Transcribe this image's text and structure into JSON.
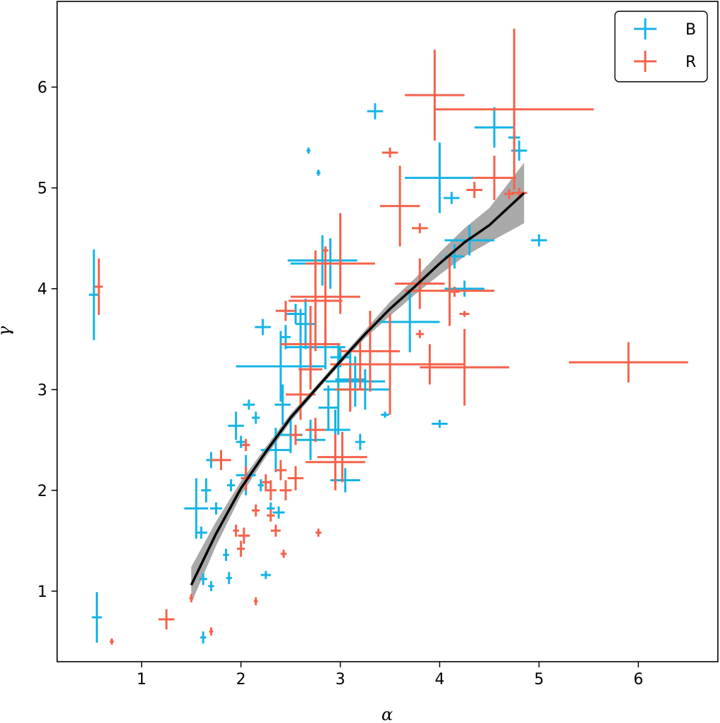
{
  "chart_data": {
    "type": "scatter",
    "title": "",
    "xlabel": "α",
    "ylabel": "γ",
    "xlim": [
      0.15,
      6.8
    ],
    "ylim": [
      0.3,
      6.85
    ],
    "xticks": [
      1,
      2,
      3,
      4,
      5,
      6
    ],
    "yticks": [
      1,
      2,
      3,
      4,
      5,
      6
    ],
    "grid": false,
    "legend": {
      "position": "top-right",
      "entries": [
        "B",
        "R"
      ]
    },
    "colors": {
      "B": "#14b4e6",
      "R": "#f5624a",
      "fit": "#000000",
      "band": "#8c8c8c"
    },
    "series": [
      {
        "name": "B",
        "points": [
          [
            0.52,
            3.94,
            0.05,
            0.45
          ],
          [
            0.55,
            0.74,
            0.05,
            0.25
          ],
          [
            1.55,
            1.82,
            0.12,
            0.3
          ],
          [
            1.65,
            2.0,
            0.05,
            0.12
          ],
          [
            1.6,
            1.58,
            0.06,
            0.06
          ],
          [
            1.7,
            2.3,
            0.05,
            0.08
          ],
          [
            1.75,
            1.82,
            0.06,
            0.06
          ],
          [
            1.62,
            1.12,
            0.04,
            0.06
          ],
          [
            1.7,
            1.05,
            0.03,
            0.05
          ],
          [
            1.62,
            0.54,
            0.03,
            0.06
          ],
          [
            1.85,
            1.36,
            0.03,
            0.06
          ],
          [
            1.88,
            1.13,
            0.03,
            0.06
          ],
          [
            1.9,
            2.05,
            0.04,
            0.06
          ],
          [
            1.95,
            2.64,
            0.08,
            0.14
          ],
          [
            2.0,
            2.48,
            0.05,
            0.06
          ],
          [
            2.05,
            2.15,
            0.1,
            0.2
          ],
          [
            2.08,
            2.85,
            0.06,
            0.05
          ],
          [
            2.15,
            2.72,
            0.04,
            0.06
          ],
          [
            2.2,
            2.05,
            0.03,
            0.06
          ],
          [
            2.25,
            1.16,
            0.05,
            0.04
          ],
          [
            2.22,
            3.62,
            0.08,
            0.08
          ],
          [
            2.4,
            3.23,
            0.45,
            0.35
          ],
          [
            2.35,
            2.4,
            0.15,
            0.22
          ],
          [
            2.3,
            1.82,
            0.04,
            0.06
          ],
          [
            2.38,
            1.78,
            0.06,
            0.06
          ],
          [
            2.42,
            2.85,
            0.08,
            0.2
          ],
          [
            2.45,
            3.52,
            0.05,
            0.12
          ],
          [
            2.5,
            2.55,
            0.12,
            0.18
          ],
          [
            2.55,
            3.75,
            0.1,
            0.1
          ],
          [
            2.6,
            3.42,
            0.15,
            0.38
          ],
          [
            2.65,
            3.65,
            0.1,
            0.25
          ],
          [
            2.7,
            2.5,
            0.15,
            0.2
          ],
          [
            2.68,
            5.37,
            0.02,
            0.03
          ],
          [
            2.78,
            5.15,
            0.02,
            0.03
          ],
          [
            2.82,
            4.28,
            0.35,
            0.25
          ],
          [
            2.9,
            4.25,
            0.4,
            0.25
          ],
          [
            2.85,
            3.42,
            0.2,
            0.22
          ],
          [
            2.88,
            2.82,
            0.1,
            0.22
          ],
          [
            2.95,
            2.6,
            0.15,
            0.2
          ],
          [
            2.98,
            3.0,
            0.15,
            0.45
          ],
          [
            3.0,
            3.32,
            0.1,
            0.1
          ],
          [
            3.05,
            2.1,
            0.15,
            0.12
          ],
          [
            3.1,
            3.1,
            0.15,
            0.3
          ],
          [
            3.15,
            3.08,
            0.3,
            0.25
          ],
          [
            3.2,
            2.48,
            0.05,
            0.08
          ],
          [
            3.25,
            3.0,
            0.25,
            0.2
          ],
          [
            3.35,
            5.76,
            0.08,
            0.08
          ],
          [
            3.45,
            2.75,
            0.04,
            0.03
          ],
          [
            3.7,
            3.67,
            0.3,
            0.3
          ],
          [
            4.0,
            5.1,
            0.35,
            0.35
          ],
          [
            4.12,
            4.9,
            0.08,
            0.06
          ],
          [
            4.15,
            4.32,
            0.1,
            0.12
          ],
          [
            4.0,
            2.66,
            0.08,
            0.04
          ],
          [
            4.3,
            4.48,
            0.25,
            0.15
          ],
          [
            4.25,
            4.0,
            0.2,
            0.08
          ],
          [
            4.55,
            5.6,
            0.2,
            0.2
          ],
          [
            4.75,
            5.5,
            0.06,
            0.06
          ],
          [
            4.8,
            5.37,
            0.08,
            0.1
          ],
          [
            5.0,
            4.48,
            0.08,
            0.06
          ]
        ]
      },
      {
        "name": "R",
        "points": [
          [
            0.57,
            4.02,
            0.04,
            0.28
          ],
          [
            0.7,
            0.5,
            0.02,
            0.03
          ],
          [
            1.25,
            0.72,
            0.08,
            0.1
          ],
          [
            1.5,
            0.93,
            0.02,
            0.04
          ],
          [
            1.7,
            0.6,
            0.02,
            0.04
          ],
          [
            1.8,
            2.3,
            0.1,
            0.1
          ],
          [
            1.95,
            1.6,
            0.03,
            0.06
          ],
          [
            2.0,
            1.42,
            0.04,
            0.08
          ],
          [
            2.03,
            1.55,
            0.06,
            0.08
          ],
          [
            2.05,
            2.12,
            0.05,
            0.12
          ],
          [
            2.05,
            2.45,
            0.04,
            0.06
          ],
          [
            2.15,
            0.9,
            0.02,
            0.04
          ],
          [
            2.15,
            1.8,
            0.04,
            0.06
          ],
          [
            2.25,
            2.08,
            0.04,
            0.08
          ],
          [
            2.3,
            2.0,
            0.06,
            0.1
          ],
          [
            2.3,
            1.75,
            0.04,
            0.06
          ],
          [
            2.35,
            1.6,
            0.05,
            0.06
          ],
          [
            2.4,
            2.2,
            0.06,
            0.1
          ],
          [
            2.43,
            1.37,
            0.03,
            0.04
          ],
          [
            2.45,
            3.78,
            0.1,
            0.1
          ],
          [
            2.45,
            2.0,
            0.06,
            0.1
          ],
          [
            2.55,
            2.12,
            0.08,
            0.12
          ],
          [
            2.55,
            2.55,
            0.06,
            0.1
          ],
          [
            2.6,
            2.95,
            0.15,
            0.25
          ],
          [
            2.7,
            3.45,
            0.3,
            0.38
          ],
          [
            2.7,
            3.2,
            0.12,
            0.2
          ],
          [
            2.75,
            2.6,
            0.1,
            0.12
          ],
          [
            2.78,
            1.58,
            0.03,
            0.04
          ],
          [
            2.75,
            3.88,
            0.27,
            0.5
          ],
          [
            2.85,
            4.38,
            0.03,
            0.03
          ],
          [
            2.85,
            3.92,
            0.35,
            0.5
          ],
          [
            2.95,
            2.28,
            0.3,
            0.28
          ],
          [
            3.0,
            4.25,
            0.35,
            0.5
          ],
          [
            3.02,
            2.33,
            0.25,
            0.25
          ],
          [
            3.1,
            3.0,
            0.15,
            0.22
          ],
          [
            3.2,
            3.25,
            0.3,
            0.25
          ],
          [
            3.3,
            3.38,
            0.3,
            0.4
          ],
          [
            3.5,
            3.25,
            0.35,
            0.5
          ],
          [
            3.5,
            5.35,
            0.08,
            0.05
          ],
          [
            3.6,
            4.82,
            0.2,
            0.4
          ],
          [
            3.8,
            4.6,
            0.08,
            0.05
          ],
          [
            3.8,
            3.55,
            0.04,
            0.04
          ],
          [
            3.8,
            4.05,
            0.25,
            0.25
          ],
          [
            3.9,
            3.25,
            0.35,
            0.2
          ],
          [
            3.95,
            5.92,
            0.3,
            0.45
          ],
          [
            4.1,
            3.98,
            0.45,
            0.35
          ],
          [
            4.15,
            3.97,
            0.05,
            0.05
          ],
          [
            4.25,
            3.22,
            0.45,
            0.38
          ],
          [
            4.25,
            3.75,
            0.05,
            0.03
          ],
          [
            4.35,
            4.98,
            0.08,
            0.08
          ],
          [
            4.55,
            5.1,
            0.22,
            0.22
          ],
          [
            4.75,
            5.78,
            0.8,
            0.8
          ],
          [
            4.8,
            4.95,
            0.08,
            0.05
          ],
          [
            5.9,
            3.27,
            0.6,
            0.2
          ],
          [
            4.7,
            4.94,
            0.05,
            0.05
          ]
        ]
      }
    ],
    "fit": {
      "x": [
        1.5,
        1.75,
        2.0,
        2.25,
        2.5,
        2.75,
        3.0,
        3.25,
        3.5,
        3.75,
        4.0,
        4.25,
        4.5,
        4.85
      ],
      "y": [
        1.06,
        1.57,
        2.02,
        2.38,
        2.72,
        3.0,
        3.28,
        3.55,
        3.8,
        4.02,
        4.25,
        4.46,
        4.63,
        4.95
      ],
      "lower": [
        0.88,
        1.45,
        1.95,
        2.33,
        2.68,
        2.97,
        3.25,
        3.51,
        3.73,
        3.94,
        4.14,
        4.32,
        4.46,
        4.65
      ],
      "upper": [
        1.24,
        1.69,
        2.09,
        2.43,
        2.76,
        3.03,
        3.31,
        3.59,
        3.87,
        4.1,
        4.36,
        4.6,
        4.8,
        5.25
      ]
    }
  }
}
